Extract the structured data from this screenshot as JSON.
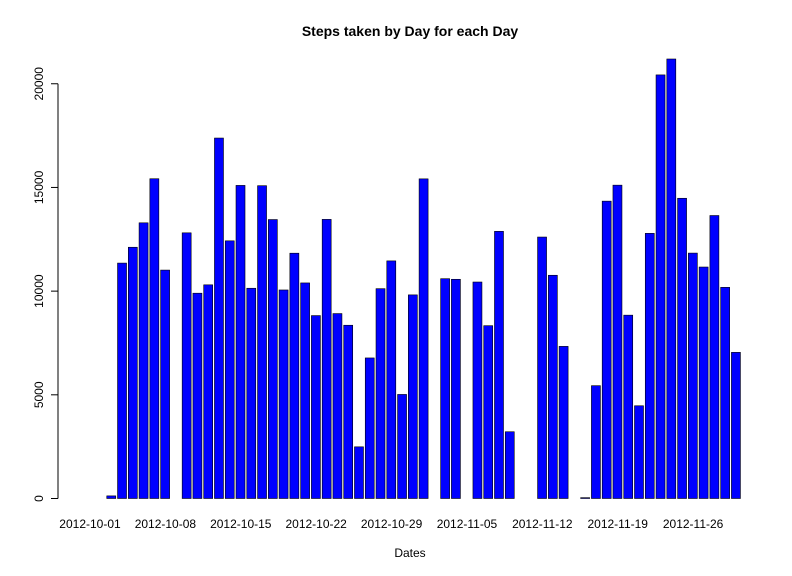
{
  "chart_data": {
    "type": "bar",
    "title": "Steps taken by Day for each Day",
    "xlabel": "Dates",
    "ylabel": "",
    "ylim": [
      0,
      21194
    ],
    "yticks": [
      0,
      5000,
      10000,
      15000,
      20000
    ],
    "bar_color": "#0000FF",
    "xtick_labels": [
      "2012-10-01",
      "2012-10-08",
      "2012-10-15",
      "2012-10-22",
      "2012-10-29",
      "2012-11-05",
      "2012-11-12",
      "2012-11-19",
      "2012-11-26"
    ],
    "categories": [
      "2012-10-01",
      "2012-10-02",
      "2012-10-03",
      "2012-10-04",
      "2012-10-05",
      "2012-10-06",
      "2012-10-07",
      "2012-10-08",
      "2012-10-09",
      "2012-10-10",
      "2012-10-11",
      "2012-10-12",
      "2012-10-13",
      "2012-10-14",
      "2012-10-15",
      "2012-10-16",
      "2012-10-17",
      "2012-10-18",
      "2012-10-19",
      "2012-10-20",
      "2012-10-21",
      "2012-10-22",
      "2012-10-23",
      "2012-10-24",
      "2012-10-25",
      "2012-10-26",
      "2012-10-27",
      "2012-10-28",
      "2012-10-29",
      "2012-10-30",
      "2012-10-31",
      "2012-11-01",
      "2012-11-02",
      "2012-11-03",
      "2012-11-04",
      "2012-11-05",
      "2012-11-06",
      "2012-11-07",
      "2012-11-08",
      "2012-11-09",
      "2012-11-10",
      "2012-11-11",
      "2012-11-12",
      "2012-11-13",
      "2012-11-14",
      "2012-11-15",
      "2012-11-16",
      "2012-11-17",
      "2012-11-18",
      "2012-11-19",
      "2012-11-20",
      "2012-11-21",
      "2012-11-22",
      "2012-11-23",
      "2012-11-24",
      "2012-11-25",
      "2012-11-26",
      "2012-11-27",
      "2012-11-28",
      "2012-11-29",
      "2012-11-30"
    ],
    "values": [
      0,
      126,
      11352,
      12116,
      13294,
      15420,
      11015,
      0,
      12811,
      9900,
      10304,
      17382,
      12426,
      15098,
      10139,
      15084,
      13452,
      10056,
      11829,
      10395,
      8821,
      13460,
      8918,
      8355,
      2492,
      6778,
      10119,
      11458,
      5018,
      9819,
      15414,
      0,
      10600,
      10571,
      0,
      10439,
      8334,
      12883,
      3219,
      0,
      0,
      12608,
      10765,
      7336,
      0,
      41,
      5441,
      14339,
      15110,
      8841,
      4472,
      12787,
      20427,
      21194,
      14478,
      11834,
      11162,
      13646,
      10183,
      7047,
      0
    ]
  }
}
